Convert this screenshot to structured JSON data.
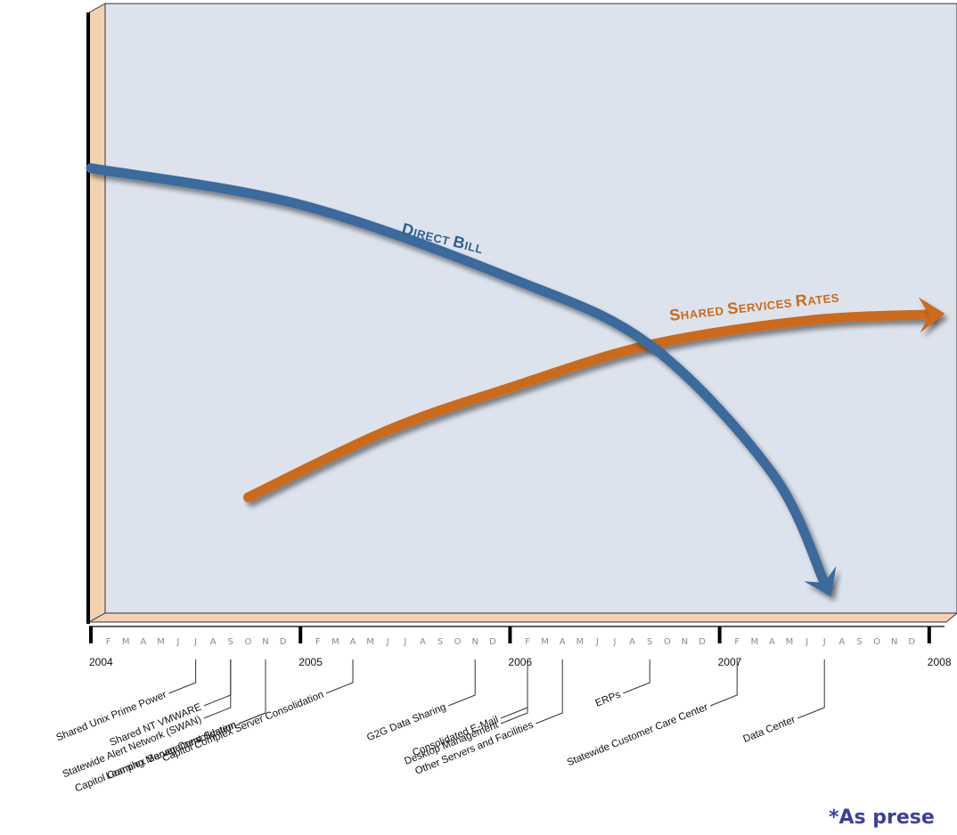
{
  "chart_data": {
    "type": "line",
    "title": "",
    "xlabel": "",
    "ylabel": "",
    "x_axis": {
      "start": "2004-01",
      "end": "2008-01",
      "year_labels": [
        "2004",
        "2005",
        "2006",
        "2007",
        "2008"
      ],
      "month_letters": [
        "F",
        "M",
        "A",
        "M",
        "J",
        "J",
        "A",
        "S",
        "O",
        "N",
        "D"
      ]
    },
    "grid": false,
    "series": [
      {
        "name": "Direct Bill",
        "label_main": "D",
        "label_rest": "IRECT ",
        "label_main2": "B",
        "label_rest2": "ILL",
        "color": "#3b6a9c",
        "points": [
          [
            "2004-01",
            0.73
          ],
          [
            "2005-01",
            0.67
          ],
          [
            "2006-01",
            0.55
          ],
          [
            "2006-09",
            0.44
          ],
          [
            "2007-04",
            0.23
          ],
          [
            "2007-07",
            0.05
          ]
        ]
      },
      {
        "name": "Shared Services Rates",
        "label_main": "S",
        "label_rest": "HARED ",
        "label_main2": "S",
        "label_rest2": "ERVICES ",
        "label_main3": "R",
        "label_rest3": "ATES",
        "color": "#cc6a1a",
        "points": [
          [
            "2004-10",
            0.19
          ],
          [
            "2005-06",
            0.3
          ],
          [
            "2006-01",
            0.37
          ],
          [
            "2006-09",
            0.44
          ],
          [
            "2007-06",
            0.48
          ],
          [
            "2008-01",
            0.49
          ]
        ]
      }
    ],
    "milestones": [
      {
        "label": "Shared Unix Prime Power",
        "date": "2004-07"
      },
      {
        "label": "Shared NT VMWARE",
        "date": "2004-09"
      },
      {
        "label": "Statewide Alert Network (SWAN)",
        "date": "2004-09"
      },
      {
        "label": "Capitol Complex Server Consolidation",
        "date": "2004-11"
      },
      {
        "label": "Learning Management System",
        "date": "2004-11"
      },
      {
        "label": "Capitol Complex Server Consolidation",
        "date": "2005-04"
      },
      {
        "label": "G2G Data Sharing",
        "date": "2005-11"
      },
      {
        "label": "Consolidated E-Mail",
        "date": "2006-02"
      },
      {
        "label": "Desktop Management",
        "date": "2006-02"
      },
      {
        "label": "Other Servers and Facilities",
        "date": "2006-04"
      },
      {
        "label": "ERPs",
        "date": "2006-09"
      },
      {
        "label": "Statewide Customer Care Center",
        "date": "2007-02"
      },
      {
        "label": "Data Center",
        "date": "2007-07"
      }
    ]
  },
  "footnote": "*As prese",
  "colors": {
    "panel": "#dde3ec",
    "left_band": "#f3d2b3",
    "direct_bill": "#3b6a9c",
    "shared_rates": "#cc6a1a"
  }
}
